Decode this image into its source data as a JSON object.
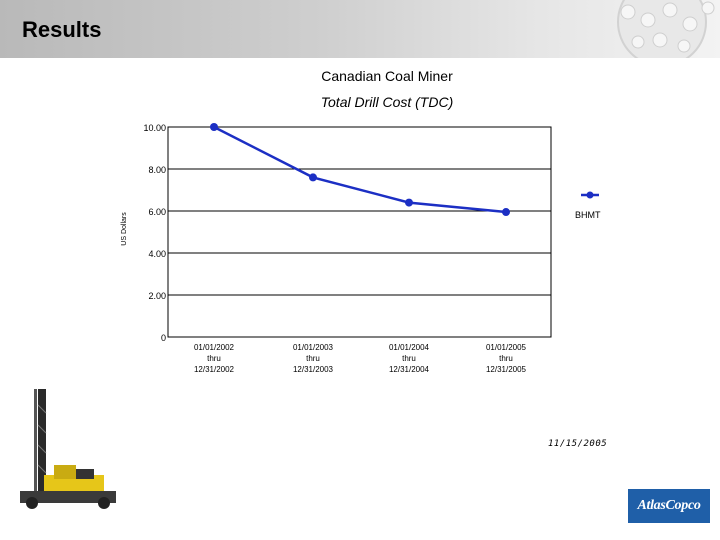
{
  "header": {
    "title": "Results"
  },
  "logo": {
    "text": "AtlasCopco"
  },
  "date_stamp": "11/15/2005",
  "chart_data": {
    "type": "line",
    "title": "Canadian Coal Miner",
    "subtitle": "Total Drill Cost (TDC)",
    "ylabel": "US Dollars",
    "xlabel": "",
    "categories": [
      [
        "01/01/2002",
        "thru",
        "12/31/2002"
      ],
      [
        "01/01/2003",
        "thru",
        "12/31/2003"
      ],
      [
        "01/01/2004",
        "thru",
        "12/31/2004"
      ],
      [
        "01/01/2005",
        "thru",
        "12/31/2005"
      ]
    ],
    "series": [
      {
        "name": "BHMT",
        "values": [
          10.0,
          7.6,
          6.4,
          5.95
        ],
        "color": "#1c2fc4"
      }
    ],
    "ylim": [
      0,
      10
    ],
    "yticks": [
      {
        "value": 0,
        "label": "0"
      },
      {
        "value": 2,
        "label": "2.00"
      },
      {
        "value": 4,
        "label": "4.00"
      },
      {
        "value": 6,
        "label": "6.00"
      },
      {
        "value": 8,
        "label": "8.00"
      },
      {
        "value": 10,
        "label": "10.00"
      }
    ],
    "grid": true,
    "legend": "right"
  }
}
